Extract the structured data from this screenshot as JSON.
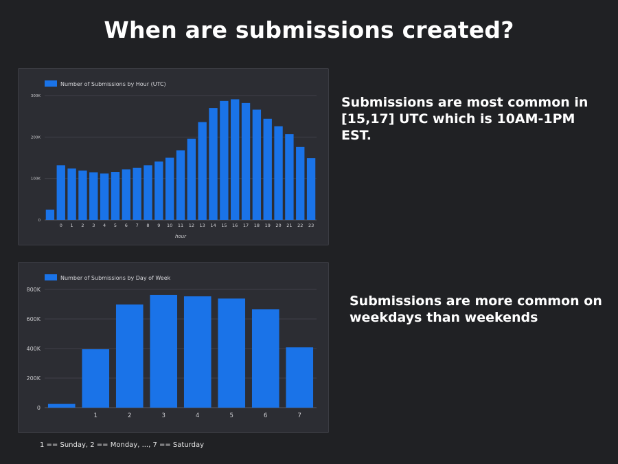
{
  "page": {
    "title": "When are submissions created?"
  },
  "notes": {
    "hour": "Submissions are most common in [15,17] UTC which is 10AM-1PM EST.",
    "weekday": "Submissions are more common on weekdays than weekends"
  },
  "footnote": "1 == Sunday, 2 == Monday, ..., 7 == Saturday",
  "colors": {
    "bar": "#1a73e8",
    "background": "#202124",
    "panel": "#2c2d33",
    "grid": "#3f4048"
  },
  "chart_data": [
    {
      "type": "bar",
      "title": "",
      "legend": "Number of Submissions by Hour (UTC)",
      "xlabel": "hour",
      "ylabel": "",
      "categories": [
        "",
        "0",
        "1",
        "2",
        "3",
        "4",
        "5",
        "6",
        "7",
        "8",
        "9",
        "10",
        "11",
        "12",
        "13",
        "14",
        "15",
        "16",
        "17",
        "18",
        "19",
        "20",
        "21",
        "22",
        "23"
      ],
      "values": [
        25000,
        132000,
        124000,
        119000,
        115000,
        112000,
        116000,
        122000,
        126000,
        132000,
        141000,
        150000,
        168000,
        196000,
        236000,
        270000,
        287000,
        291000,
        282000,
        266000,
        244000,
        226000,
        207000,
        176000,
        149000
      ],
      "ylim": [
        0,
        300000
      ],
      "yticks": [
        0,
        100000,
        200000,
        300000
      ],
      "ytick_labels": [
        "0",
        "100K",
        "200K",
        "300K"
      ],
      "legend_position": "top-left",
      "grid": true
    },
    {
      "type": "bar",
      "title": "",
      "legend": "Number of Submissions by Day of Week",
      "xlabel": "",
      "ylabel": "",
      "categories": [
        "",
        "1",
        "2",
        "3",
        "4",
        "5",
        "6",
        "7"
      ],
      "values": [
        25000,
        395000,
        698000,
        763000,
        753000,
        738000,
        665000,
        408000
      ],
      "ylim": [
        0,
        800000
      ],
      "yticks": [
        0,
        200000,
        400000,
        600000,
        800000
      ],
      "ytick_labels": [
        "0",
        "200K",
        "400K",
        "600K",
        "800K"
      ],
      "legend_position": "top-left",
      "grid": true
    }
  ]
}
